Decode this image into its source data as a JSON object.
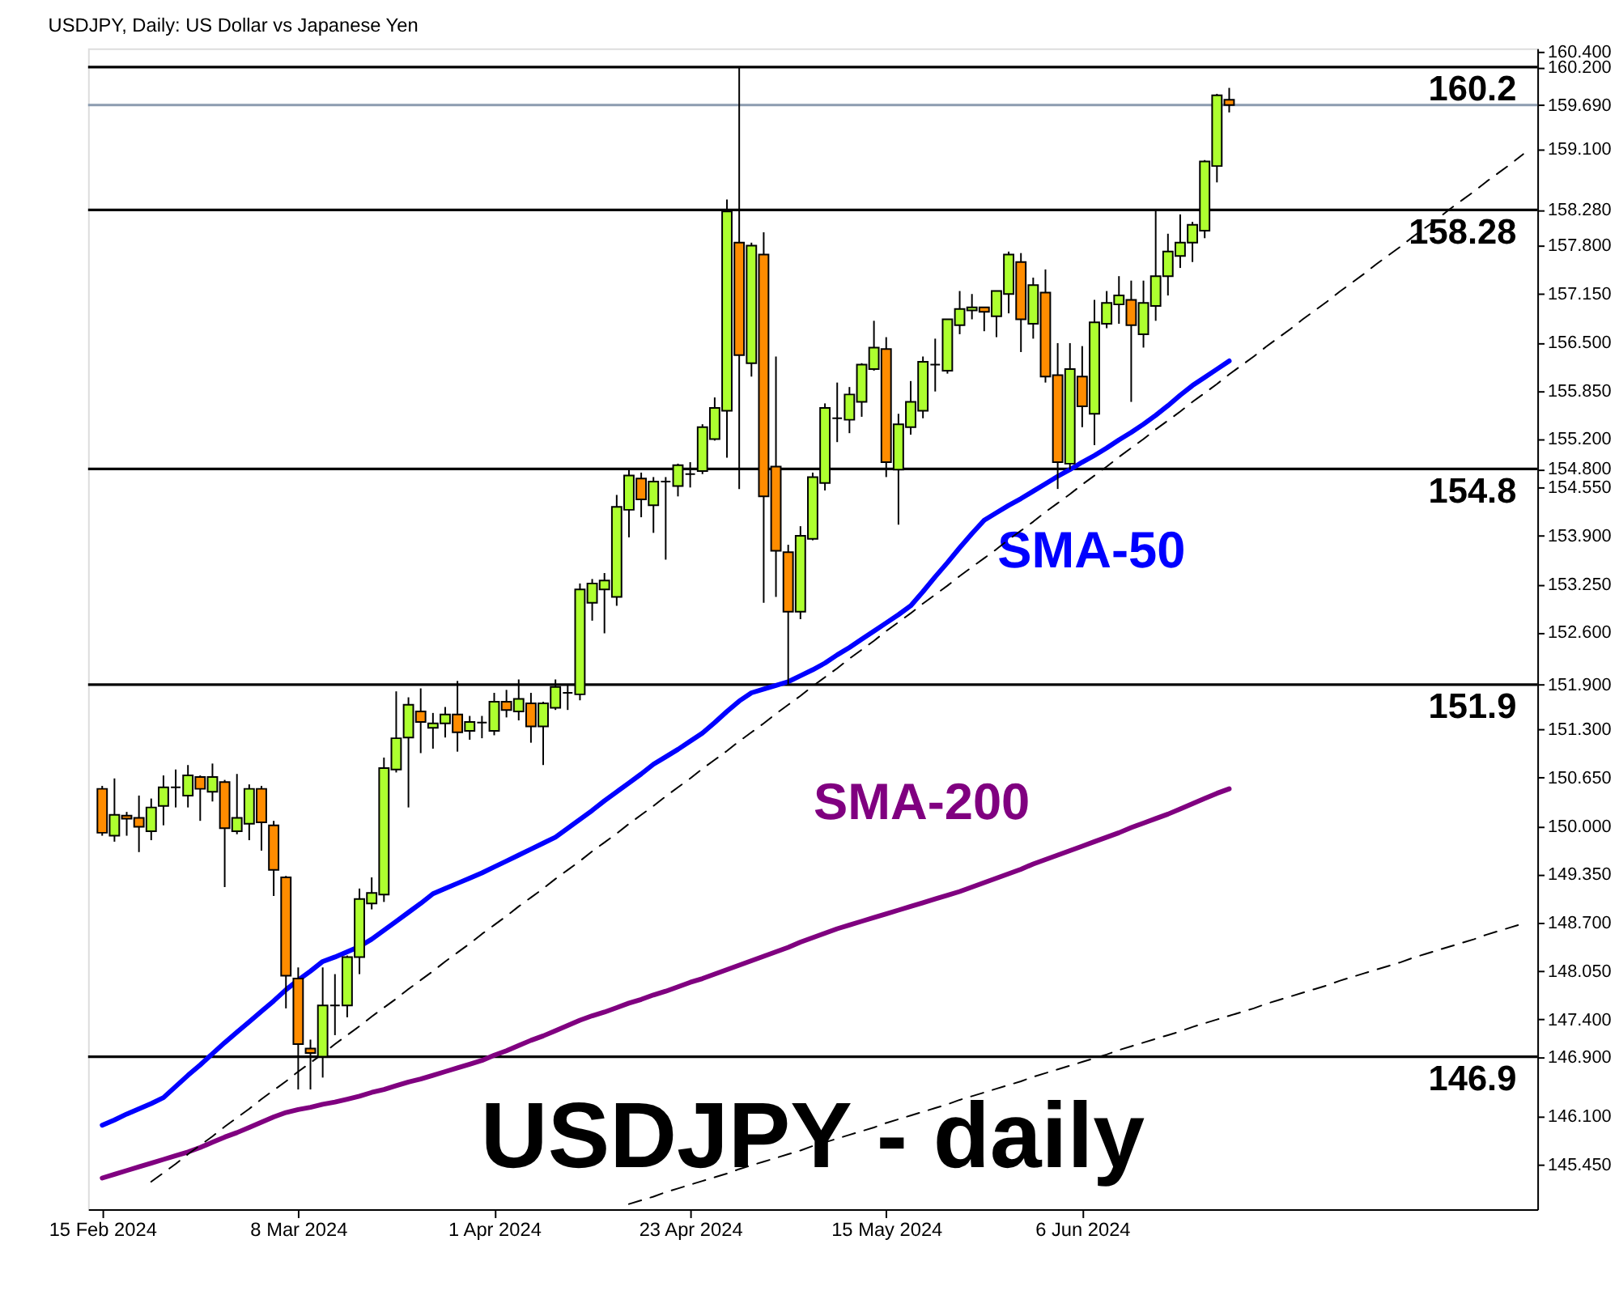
{
  "chart_data": {
    "type": "candlestick",
    "title": "USDJPY, Daily:  US Dollar vs Japanese Yen",
    "annotations": [
      "USDJPY - daily"
    ],
    "categories": [
      "15 Feb 2024",
      null,
      null,
      null,
      null,
      null,
      null,
      null,
      null,
      null,
      null,
      null,
      null,
      null,
      null,
      null,
      "8 Mar 2024",
      null,
      null,
      null,
      null,
      null,
      null,
      null,
      null,
      null,
      null,
      null,
      null,
      null,
      null,
      null,
      "1 Apr 2024",
      null,
      null,
      null,
      null,
      null,
      null,
      null,
      null,
      null,
      null,
      null,
      null,
      null,
      null,
      null,
      "23 Apr 2024",
      null,
      null,
      null,
      null,
      null,
      null,
      null,
      null,
      null,
      null,
      null,
      null,
      null,
      null,
      null,
      "15 May 2024",
      null,
      null,
      null,
      null,
      null,
      null,
      null,
      null,
      null,
      null,
      null,
      null,
      null,
      null,
      null,
      "6 Jun 2024",
      null,
      null,
      null,
      null,
      null,
      null,
      null,
      null,
      null,
      null,
      null,
      null,
      null,
      null,
      null,
      null,
      null,
      null,
      null,
      null,
      null,
      null,
      null,
      null,
      null,
      null,
      null,
      null,
      null,
      null,
      null,
      null,
      null,
      null,
      null,
      null
    ],
    "ohlc": [
      [
        150.5,
        150.54,
        149.87,
        149.91
      ],
      [
        149.87,
        150.64,
        149.79,
        150.15
      ],
      [
        150.14,
        150.19,
        149.87,
        150.1
      ],
      [
        150.11,
        150.41,
        149.65,
        149.99
      ],
      [
        149.93,
        150.37,
        149.81,
        150.25
      ],
      [
        150.27,
        150.68,
        150.01,
        150.52
      ],
      [
        150.52,
        150.76,
        150.25,
        150.52
      ],
      [
        150.41,
        150.82,
        150.25,
        150.68
      ],
      [
        150.66,
        150.68,
        150.07,
        150.5
      ],
      [
        150.46,
        150.84,
        150.33,
        150.66
      ],
      [
        150.59,
        150.62,
        149.18,
        149.97
      ],
      [
        149.93,
        150.7,
        149.89,
        150.11
      ],
      [
        150.03,
        150.56,
        149.81,
        150.5
      ],
      [
        150.5,
        150.54,
        149.67,
        150.05
      ],
      [
        150.01,
        150.07,
        149.06,
        149.41
      ],
      [
        149.31,
        149.33,
        147.55,
        147.99
      ],
      [
        147.95,
        148.1,
        146.46,
        147.07
      ],
      [
        147.01,
        147.13,
        146.46,
        146.95
      ],
      [
        146.9,
        148.1,
        146.62,
        147.59
      ],
      [
        147.59,
        148.01,
        147.19,
        147.59
      ],
      [
        147.59,
        148.26,
        147.43,
        148.24
      ],
      [
        148.24,
        149.16,
        148.01,
        149.02
      ],
      [
        148.96,
        149.31,
        148.88,
        149.1
      ],
      [
        149.08,
        150.92,
        148.98,
        150.78
      ],
      [
        150.76,
        151.81,
        150.72,
        151.18
      ],
      [
        151.19,
        151.73,
        150.25,
        151.63
      ],
      [
        151.54,
        151.85,
        150.98,
        151.4
      ],
      [
        151.32,
        151.52,
        151.04,
        151.38
      ],
      [
        151.38,
        151.6,
        151.19,
        151.5
      ],
      [
        151.5,
        151.95,
        151.0,
        151.26
      ],
      [
        151.28,
        151.48,
        151.16,
        151.4
      ],
      [
        151.39,
        151.48,
        151.18,
        151.39
      ],
      [
        151.28,
        151.79,
        151.22,
        151.67
      ],
      [
        151.67,
        151.83,
        151.46,
        151.56
      ],
      [
        151.54,
        151.97,
        151.42,
        151.71
      ],
      [
        151.65,
        151.79,
        151.12,
        151.34
      ],
      [
        151.34,
        151.67,
        150.82,
        151.65
      ],
      [
        151.59,
        151.97,
        151.56,
        151.87
      ],
      [
        151.79,
        151.89,
        151.56,
        151.79
      ],
      [
        151.77,
        153.26,
        151.69,
        153.18
      ],
      [
        153.0,
        153.32,
        152.76,
        153.26
      ],
      [
        153.18,
        153.4,
        152.59,
        153.3
      ],
      [
        153.08,
        154.45,
        152.96,
        154.29
      ],
      [
        154.25,
        154.81,
        153.88,
        154.71
      ],
      [
        154.67,
        154.75,
        154.15,
        154.39
      ],
      [
        154.31,
        154.69,
        153.94,
        154.63
      ],
      [
        154.63,
        154.69,
        153.58,
        154.63
      ],
      [
        154.57,
        154.87,
        154.43,
        154.85
      ],
      [
        154.73,
        154.89,
        154.55,
        154.73
      ],
      [
        154.77,
        155.4,
        154.73,
        155.36
      ],
      [
        155.2,
        155.76,
        155.18,
        155.62
      ],
      [
        155.58,
        158.42,
        154.95,
        158.26
      ],
      [
        157.84,
        160.2,
        154.53,
        156.33
      ],
      [
        156.22,
        157.84,
        156.04,
        157.8
      ],
      [
        157.68,
        157.98,
        153.0,
        154.43
      ],
      [
        154.83,
        156.31,
        153.08,
        153.7
      ],
      [
        153.68,
        153.78,
        151.9,
        152.88
      ],
      [
        152.88,
        154.03,
        152.78,
        153.9
      ],
      [
        153.86,
        154.75,
        153.84,
        154.69
      ],
      [
        154.61,
        155.68,
        154.51,
        155.62
      ],
      [
        155.48,
        155.96,
        155.16,
        155.48
      ],
      [
        155.46,
        155.9,
        155.28,
        155.8
      ],
      [
        155.7,
        156.22,
        155.5,
        156.2
      ],
      [
        156.14,
        156.79,
        156.12,
        156.43
      ],
      [
        156.41,
        156.57,
        154.69,
        154.89
      ],
      [
        154.79,
        155.54,
        154.05,
        155.4
      ],
      [
        155.36,
        155.98,
        155.26,
        155.7
      ],
      [
        155.58,
        156.31,
        155.48,
        156.24
      ],
      [
        156.2,
        156.55,
        155.84,
        156.2
      ],
      [
        156.12,
        156.81,
        156.08,
        156.81
      ],
      [
        156.73,
        157.19,
        156.61,
        156.95
      ],
      [
        156.93,
        157.15,
        156.81,
        156.97
      ],
      [
        156.97,
        156.97,
        156.65,
        156.91
      ],
      [
        156.85,
        157.19,
        156.57,
        157.19
      ],
      [
        157.15,
        157.72,
        156.89,
        157.68
      ],
      [
        157.58,
        157.7,
        156.37,
        156.81
      ],
      [
        156.75,
        157.37,
        156.55,
        157.27
      ],
      [
        157.17,
        157.48,
        155.96,
        156.04
      ],
      [
        156.06,
        156.49,
        154.53,
        154.89
      ],
      [
        154.87,
        156.49,
        154.79,
        156.14
      ],
      [
        156.04,
        156.45,
        155.36,
        155.64
      ],
      [
        155.54,
        157.07,
        155.12,
        156.77
      ],
      [
        156.75,
        157.19,
        156.69,
        157.03
      ],
      [
        157.01,
        157.39,
        156.75,
        157.13
      ],
      [
        157.07,
        157.33,
        155.7,
        156.73
      ],
      [
        156.61,
        157.33,
        156.43,
        157.03
      ],
      [
        156.99,
        158.28,
        156.79,
        157.39
      ],
      [
        157.39,
        157.96,
        157.13,
        157.72
      ],
      [
        157.66,
        158.22,
        157.5,
        157.84
      ],
      [
        157.84,
        158.12,
        157.58,
        158.08
      ],
      [
        158.0,
        158.95,
        157.9,
        158.93
      ],
      [
        158.87,
        159.84,
        158.65,
        159.82
      ],
      [
        159.76,
        159.92,
        159.59,
        159.69
      ],
      null,
      null,
      null,
      null,
      null,
      null,
      null,
      null,
      null,
      null,
      null,
      null,
      null,
      null,
      null,
      null,
      null,
      null,
      null,
      null,
      null,
      null,
      null,
      null
    ],
    "colors": [
      "#ff8c00",
      "#adff2f",
      "#ff8c00",
      "#ff8c00",
      "#adff2f",
      "#adff2f",
      "#000000",
      "#adff2f",
      "#ff8c00",
      "#adff2f",
      "#ff8c00",
      "#adff2f",
      "#adff2f",
      "#ff8c00",
      "#ff8c00",
      "#ff8c00",
      "#ff8c00",
      "#ff8c00",
      "#adff2f",
      "#000000",
      "#adff2f",
      "#adff2f",
      "#adff2f",
      "#adff2f",
      "#adff2f",
      "#adff2f",
      "#ff8c00",
      "#adff2f",
      "#adff2f",
      "#ff8c00",
      "#adff2f",
      "#000000",
      "#adff2f",
      "#ff8c00",
      "#adff2f",
      "#ff8c00",
      "#adff2f",
      "#adff2f",
      "#000000",
      "#adff2f",
      "#adff2f",
      "#adff2f",
      "#adff2f",
      "#adff2f",
      "#ff8c00",
      "#adff2f",
      "#000000",
      "#adff2f",
      "#000000",
      "#adff2f",
      "#adff2f",
      "#adff2f",
      "#ff8c00",
      "#adff2f",
      "#ff8c00",
      "#ff8c00",
      "#ff8c00",
      "#adff2f",
      "#adff2f",
      "#adff2f",
      "#000000",
      "#adff2f",
      "#adff2f",
      "#adff2f",
      "#ff8c00",
      "#adff2f",
      "#adff2f",
      "#adff2f",
      "#000000",
      "#adff2f",
      "#adff2f",
      "#adff2f",
      "#ff8c00",
      "#adff2f",
      "#adff2f",
      "#ff8c00",
      "#adff2f",
      "#ff8c00",
      "#ff8c00",
      "#adff2f",
      "#ff8c00",
      "#adff2f",
      "#adff2f",
      "#adff2f",
      "#ff8c00",
      "#adff2f",
      "#adff2f",
      "#adff2f",
      "#adff2f",
      "#adff2f",
      "#adff2f",
      "#adff2f",
      "#ff8c00",
      null,
      null,
      null,
      null,
      null,
      null,
      null,
      null,
      null,
      null,
      null,
      null,
      null,
      null,
      null,
      null,
      null,
      null,
      null,
      null,
      null,
      null,
      null,
      null
    ],
    "series": [
      {
        "name": "SMA-50",
        "type": "line",
        "color": "#0000ff",
        "values": [
          145.98,
          146.05,
          146.13,
          146.2,
          146.27,
          146.35,
          146.5,
          146.65,
          146.79,
          146.94,
          147.09,
          147.23,
          147.37,
          147.51,
          147.65,
          147.8,
          147.93,
          148.05,
          148.18,
          148.24,
          148.31,
          148.38,
          148.48,
          148.6,
          148.72,
          148.84,
          148.96,
          149.09,
          149.16,
          149.23,
          149.3,
          149.37,
          149.45,
          149.53,
          149.61,
          149.69,
          149.77,
          149.85,
          149.97,
          150.09,
          150.21,
          150.34,
          150.46,
          150.58,
          150.7,
          150.83,
          150.93,
          151.03,
          151.14,
          151.25,
          151.39,
          151.54,
          151.68,
          151.79,
          151.84,
          151.89,
          151.94,
          152.02,
          152.1,
          152.19,
          152.3,
          152.4,
          152.51,
          152.62,
          152.73,
          152.84,
          152.96,
          153.15,
          153.35,
          153.54,
          153.74,
          153.93,
          154.11,
          154.21,
          154.31,
          154.4,
          154.5,
          154.6,
          154.7,
          154.79,
          154.89,
          154.98,
          155.08,
          155.19,
          155.29,
          155.4,
          155.52,
          155.65,
          155.79,
          155.92,
          156.03,
          156.14,
          156.25,
          null,
          null,
          null,
          null,
          null,
          null,
          null,
          null,
          null,
          null,
          null,
          null,
          null,
          null,
          null,
          null,
          null,
          null,
          null,
          null,
          null,
          null,
          null,
          null
        ]
      },
      {
        "name": "SMA-200",
        "type": "line",
        "color": "#800080",
        "values": [
          145.27,
          145.32,
          145.37,
          145.42,
          145.47,
          145.52,
          145.57,
          145.62,
          145.68,
          145.75,
          145.82,
          145.88,
          145.95,
          146.02,
          146.09,
          146.15,
          146.19,
          146.22,
          146.26,
          146.29,
          146.33,
          146.37,
          146.42,
          146.46,
          146.51,
          146.56,
          146.6,
          146.65,
          146.7,
          146.75,
          146.8,
          146.85,
          146.92,
          146.98,
          147.05,
          147.12,
          147.18,
          147.25,
          147.32,
          147.39,
          147.45,
          147.5,
          147.56,
          147.62,
          147.67,
          147.73,
          147.78,
          147.84,
          147.9,
          147.95,
          148.01,
          148.07,
          148.13,
          148.19,
          148.25,
          148.31,
          148.37,
          148.44,
          148.5,
          148.56,
          148.62,
          148.67,
          148.72,
          148.77,
          148.82,
          148.87,
          148.92,
          148.97,
          149.02,
          149.07,
          149.12,
          149.18,
          149.24,
          149.3,
          149.36,
          149.42,
          149.49,
          149.55,
          149.61,
          149.67,
          149.73,
          149.79,
          149.85,
          149.91,
          149.98,
          150.04,
          150.1,
          150.16,
          150.23,
          150.3,
          150.37,
          150.44,
          150.5,
          null,
          null,
          null,
          null,
          null,
          null,
          null,
          null,
          null,
          null,
          null,
          null,
          null,
          null,
          null,
          null,
          null,
          null,
          null,
          null,
          null,
          null,
          null,
          null
        ]
      },
      {
        "type": "line",
        "color": "#000000",
        "line_style": "dashed",
        "values": [
          null,
          null,
          null,
          null,
          145.22,
          145.34,
          145.46,
          145.59,
          145.71,
          145.83,
          145.96,
          146.08,
          146.2,
          146.33,
          146.45,
          146.57,
          146.7,
          146.82,
          146.94,
          147.07,
          147.19,
          147.31,
          147.44,
          147.56,
          147.68,
          147.81,
          147.93,
          148.05,
          148.18,
          148.3,
          148.42,
          148.55,
          148.67,
          148.79,
          148.92,
          149.04,
          149.16,
          149.29,
          149.41,
          149.53,
          149.66,
          149.78,
          149.9,
          150.03,
          150.15,
          150.27,
          150.4,
          150.52,
          150.64,
          150.77,
          150.89,
          151.01,
          151.14,
          151.26,
          151.38,
          151.51,
          151.63,
          151.75,
          151.88,
          152.0,
          152.12,
          152.25,
          152.37,
          152.49,
          152.62,
          152.74,
          152.86,
          152.99,
          153.11,
          153.23,
          153.36,
          153.48,
          153.6,
          153.72,
          153.85,
          153.97,
          154.09,
          154.22,
          154.34,
          154.46,
          154.59,
          154.71,
          154.83,
          154.96,
          155.08,
          155.2,
          155.33,
          155.45,
          155.57,
          155.7,
          155.82,
          155.94,
          156.07,
          156.19,
          156.31,
          156.44,
          156.56,
          156.68,
          156.81,
          156.93,
          157.05,
          157.18,
          157.3,
          157.42,
          157.55,
          157.67,
          157.79,
          157.92,
          158.04,
          158.16,
          158.29,
          158.41,
          158.53,
          158.66,
          158.78,
          158.9,
          159.03
        ]
      },
      {
        "type": "line",
        "color": "#000000",
        "line_style": "dashed",
        "values": [
          null,
          null,
          null,
          null,
          null,
          null,
          null,
          null,
          null,
          null,
          null,
          null,
          null,
          null,
          null,
          null,
          null,
          null,
          null,
          null,
          null,
          null,
          null,
          null,
          null,
          null,
          null,
          null,
          null,
          null,
          null,
          null,
          null,
          null,
          null,
          null,
          null,
          null,
          null,
          null,
          null,
          null,
          null,
          144.92,
          144.97,
          145.02,
          145.08,
          145.13,
          145.18,
          145.23,
          145.28,
          145.33,
          145.39,
          145.44,
          145.49,
          145.54,
          145.59,
          145.64,
          145.7,
          145.75,
          145.8,
          145.85,
          145.9,
          145.95,
          146.01,
          146.06,
          146.11,
          146.16,
          146.21,
          146.26,
          146.32,
          146.37,
          146.42,
          146.47,
          146.52,
          146.57,
          146.63,
          146.68,
          146.73,
          146.78,
          146.83,
          146.88,
          146.93,
          146.99,
          147.04,
          147.09,
          147.14,
          147.19,
          147.24,
          147.3,
          147.35,
          147.4,
          147.45,
          147.5,
          147.55,
          147.61,
          147.66,
          147.71,
          147.76,
          147.81,
          147.86,
          147.92,
          147.97,
          148.02,
          148.07,
          148.12,
          148.17,
          148.23,
          148.28,
          148.33,
          148.38,
          148.43,
          148.48,
          148.54,
          148.59,
          148.64,
          148.69
        ]
      }
    ],
    "ref_lines": [
      {
        "axis": "y",
        "value": 160.2,
        "label": "160.2",
        "color": "#000000"
      },
      {
        "axis": "y",
        "value": 159.69,
        "label": null,
        "color": "#8c9cb0"
      },
      {
        "axis": "y",
        "value": 158.28,
        "label": "158.28",
        "color": "#000000"
      },
      {
        "axis": "y",
        "value": 154.8,
        "label": "154.8",
        "color": "#000000"
      },
      {
        "axis": "y",
        "value": 151.9,
        "label": "151.9",
        "color": "#000000"
      },
      {
        "axis": "y",
        "value": 146.9,
        "label": "146.9",
        "color": "#000000"
      }
    ],
    "ylim": [
      144.85,
      160.45
    ],
    "yticks": [
      {
        "value": 160.4,
        "label": "160.400"
      },
      {
        "value": 160.2,
        "label": "160.200"
      },
      {
        "value": 159.69,
        "label": "159.690"
      },
      {
        "value": 159.1,
        "label": "159.100"
      },
      {
        "value": 158.28,
        "label": "158.280"
      },
      {
        "value": 157.8,
        "label": "157.800"
      },
      {
        "value": 157.15,
        "label": "157.150"
      },
      {
        "value": 156.5,
        "label": "156.500"
      },
      {
        "value": 155.85,
        "label": "155.850"
      },
      {
        "value": 155.2,
        "label": "155.200"
      },
      {
        "value": 154.8,
        "label": "154.800"
      },
      {
        "value": 154.55,
        "label": "154.550"
      },
      {
        "value": 153.9,
        "label": "153.900"
      },
      {
        "value": 153.25,
        "label": "153.250"
      },
      {
        "value": 152.6,
        "label": "152.600"
      },
      {
        "value": 151.9,
        "label": "151.900"
      },
      {
        "value": 151.3,
        "label": "151.300"
      },
      {
        "value": 150.65,
        "label": "150.650"
      },
      {
        "value": 150.0,
        "label": "150.000"
      },
      {
        "value": 149.35,
        "label": "149.350"
      },
      {
        "value": 148.7,
        "label": "148.700"
      },
      {
        "value": 148.05,
        "label": "148.050"
      },
      {
        "value": 147.4,
        "label": "147.400"
      },
      {
        "value": 146.9,
        "label": "146.900"
      },
      {
        "value": 146.1,
        "label": "146.100"
      },
      {
        "value": 145.45,
        "label": "145.450"
      }
    ],
    "grid": false
  }
}
